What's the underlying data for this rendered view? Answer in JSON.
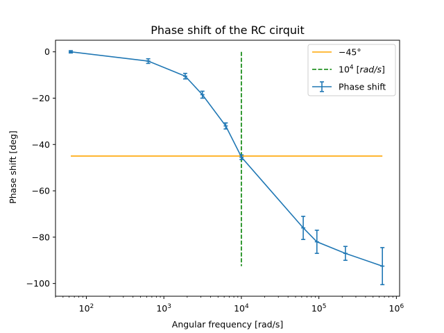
{
  "chart_data": {
    "type": "line",
    "title": "Phase shift of the RC cirquit",
    "xlabel": "Angular frequency [rad/s]",
    "ylabel": "Phase shift [deg]",
    "xscale": "log",
    "xlim": [
      40,
      1100000
    ],
    "ylim": [
      -105.5,
      5
    ],
    "xticks": [
      {
        "value": 100,
        "base": "10",
        "exp": "2"
      },
      {
        "value": 1000,
        "base": "10",
        "exp": "3"
      },
      {
        "value": 10000,
        "base": "10",
        "exp": "4"
      },
      {
        "value": 100000,
        "base": "10",
        "exp": "5"
      },
      {
        "value": 1000000,
        "base": "10",
        "exp": "6"
      }
    ],
    "yticks": [
      {
        "value": 0,
        "label": "0"
      },
      {
        "value": -20,
        "label": "−20"
      },
      {
        "value": -40,
        "label": "−40"
      },
      {
        "value": -60,
        "label": "−60"
      },
      {
        "value": -80,
        "label": "−80"
      },
      {
        "value": -100,
        "label": "−100"
      }
    ],
    "grid": false,
    "legend_position": "top-right",
    "series": [
      {
        "name": "Phase shift",
        "kind": "errorbar",
        "color": "#1f77b4",
        "x": [
          63,
          628,
          1885,
          3142,
          6283,
          10053,
          62832,
          94248,
          219911,
          659734
        ],
        "y": [
          0,
          -4,
          -10.5,
          -18.5,
          -32,
          -45.5,
          -76,
          -82,
          -87,
          -92.5
        ],
        "yerr": [
          0.5,
          1,
          1.2,
          1.5,
          1.3,
          1,
          5,
          5,
          3,
          8
        ]
      },
      {
        "name": "−45°",
        "kind": "hline",
        "color": "#ffa500",
        "x": [
          63,
          659734
        ],
        "y": [
          -45,
          -45
        ]
      },
      {
        "name": "10^4 [rad/s]",
        "kind": "vline",
        "color": "#008000",
        "dashed": true,
        "x": [
          10000,
          10000
        ],
        "y": [
          0,
          -92.5
        ]
      }
    ],
    "legend": [
      {
        "series": 1,
        "kind": "line",
        "text": "−45°"
      },
      {
        "series": 2,
        "kind": "dashed",
        "base": "10",
        "exp": "4",
        "unit": "rad/s"
      },
      {
        "series": 0,
        "kind": "errorbar",
        "text": "Phase shift"
      }
    ]
  }
}
